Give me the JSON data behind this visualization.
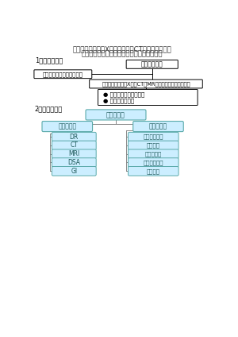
{
  "title_line1": "重庆市医学影像（X线诊断专业、CT诊断专业、磁共",
  "title_line2": "振成像诊断专业）医疗质量控制中心组织机构",
  "section1_label": "1、组织架构：",
  "section2_label": "2、主专业划分",
  "box1_text": "重庆市卫生局",
  "box2_text": "重庆医科大学附属第二医院",
  "box3_text": "重庆市医学影像（X线、CT、MR诊断专业）医疗质控中心",
  "box4_bullet1": "● 三甲、三乙综合性医院",
  "box4_bullet2": "● 二甲综合性医院",
  "cyan_box_top": "放射诊断学",
  "cyan_left1": "扫描技术组",
  "cyan_right1": "诊断医师组",
  "left_boxes": [
    "DR",
    "CT",
    "MRI",
    "DSA",
    "GI"
  ],
  "right_boxes": [
    "神经头颈学组",
    "腹部学组",
    "骨骼肌学组",
    "胸部大学学组",
    "儿科学组"
  ],
  "bg_color": "#ffffff",
  "box_border_color": "#000000",
  "cyan_fill": "#cceeff",
  "cyan_border": "#5aaaaa",
  "white_fill": "#ffffff",
  "text_color": "#000000",
  "title_color": "#333333",
  "line_color": "#888888"
}
